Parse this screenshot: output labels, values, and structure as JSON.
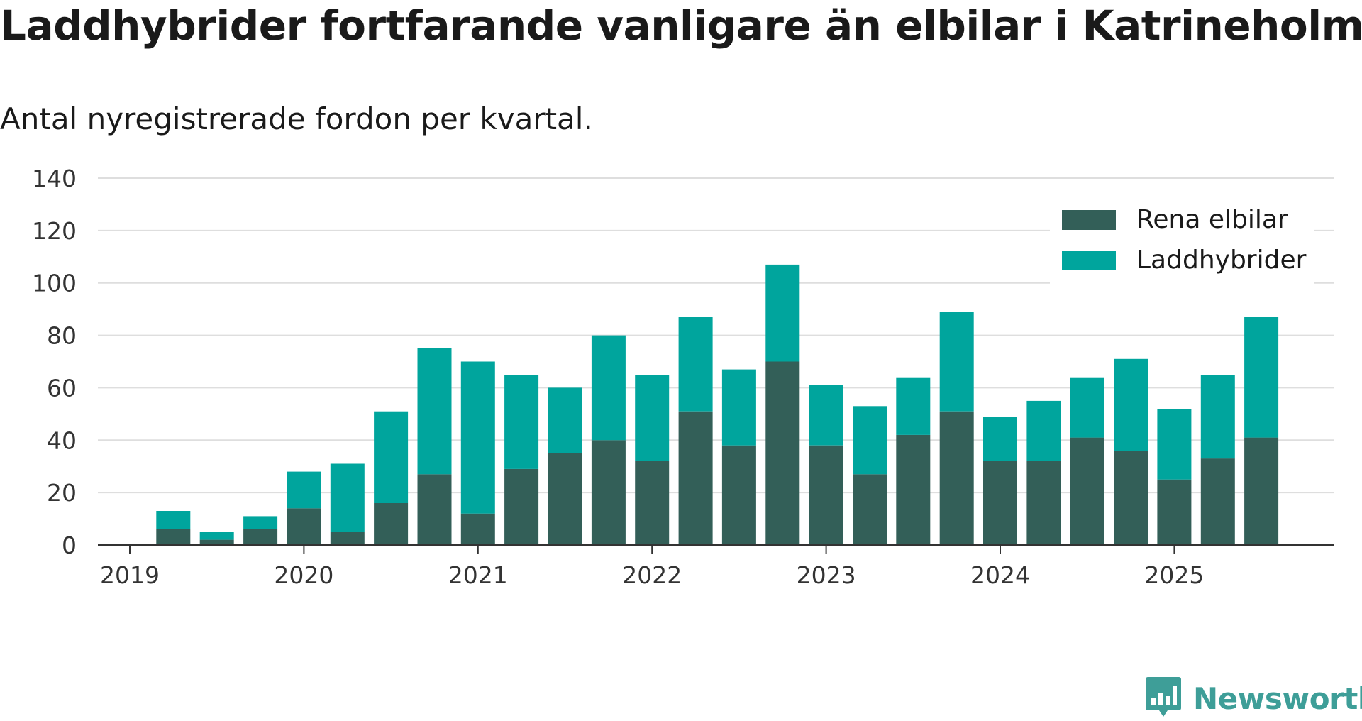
{
  "header": {
    "title": "Laddhybrider fortfarande vanligare än elbilar i Katrineholm",
    "subtitle": "Antal nyregistrerade fordon per kvartal."
  },
  "chart_data": {
    "type": "bar",
    "stacked": true,
    "title": "Laddhybrider fortfarande vanligare än elbilar i Katrineholm",
    "subtitle": "Antal nyregistrerade fordon per kvartal.",
    "xlabel": "",
    "ylabel": "",
    "ylim": [
      0,
      140
    ],
    "yticks": [
      0,
      20,
      40,
      60,
      80,
      100,
      120,
      140
    ],
    "xtick_labels": [
      "2019",
      "2020",
      "2021",
      "2022",
      "2023",
      "2024",
      "2025"
    ],
    "grid": true,
    "legend_position": "top-right",
    "categories": [
      "2019 Q1",
      "2019 Q2",
      "2019 Q3",
      "2019 Q4",
      "2020 Q1",
      "2020 Q2",
      "2020 Q3",
      "2020 Q4",
      "2021 Q1",
      "2021 Q2",
      "2021 Q3",
      "2021 Q4",
      "2022 Q1",
      "2022 Q2",
      "2022 Q3",
      "2022 Q4",
      "2023 Q1",
      "2023 Q2",
      "2023 Q3",
      "2023 Q4",
      "2024 Q1",
      "2024 Q2",
      "2024 Q3",
      "2024 Q4",
      "2025 Q1",
      "2025 Q2",
      "2025 Q3"
    ],
    "series": [
      {
        "name": "Rena elbilar",
        "color": "#335f58",
        "values": [
          0,
          6,
          2,
          6,
          14,
          5,
          16,
          27,
          12,
          29,
          35,
          40,
          32,
          51,
          38,
          70,
          38,
          27,
          42,
          51,
          32,
          32,
          41,
          36,
          25,
          33,
          41
        ]
      },
      {
        "name": "Laddhybrider",
        "color": "#00a59d",
        "values": [
          0,
          7,
          3,
          5,
          14,
          26,
          35,
          48,
          58,
          36,
          25,
          40,
          33,
          36,
          29,
          37,
          23,
          26,
          22,
          38,
          17,
          23,
          23,
          35,
          27,
          32,
          46
        ]
      }
    ]
  },
  "branding": {
    "name": "Newsworthy",
    "logo_icon": "newsworthy-logo-icon",
    "color": "#3e9e98"
  }
}
